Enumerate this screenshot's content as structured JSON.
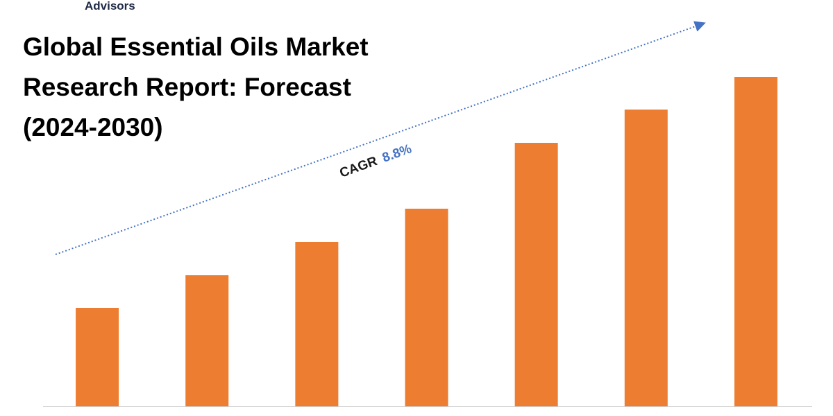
{
  "brand": "Advisors",
  "chart_data": {
    "type": "bar",
    "title": [
      "Global Essential Oils Market",
      "Research Report: Forecast",
      "(2024-2030)"
    ],
    "cagr_label": "CAGR",
    "cagr_value": "8.8%",
    "categories": [
      null,
      null,
      null,
      null,
      null,
      null,
      null
    ],
    "values": [
      142,
      189,
      237,
      285,
      380,
      428,
      475
    ],
    "color": "#ed7d31",
    "ylim": [
      0,
      500
    ]
  }
}
